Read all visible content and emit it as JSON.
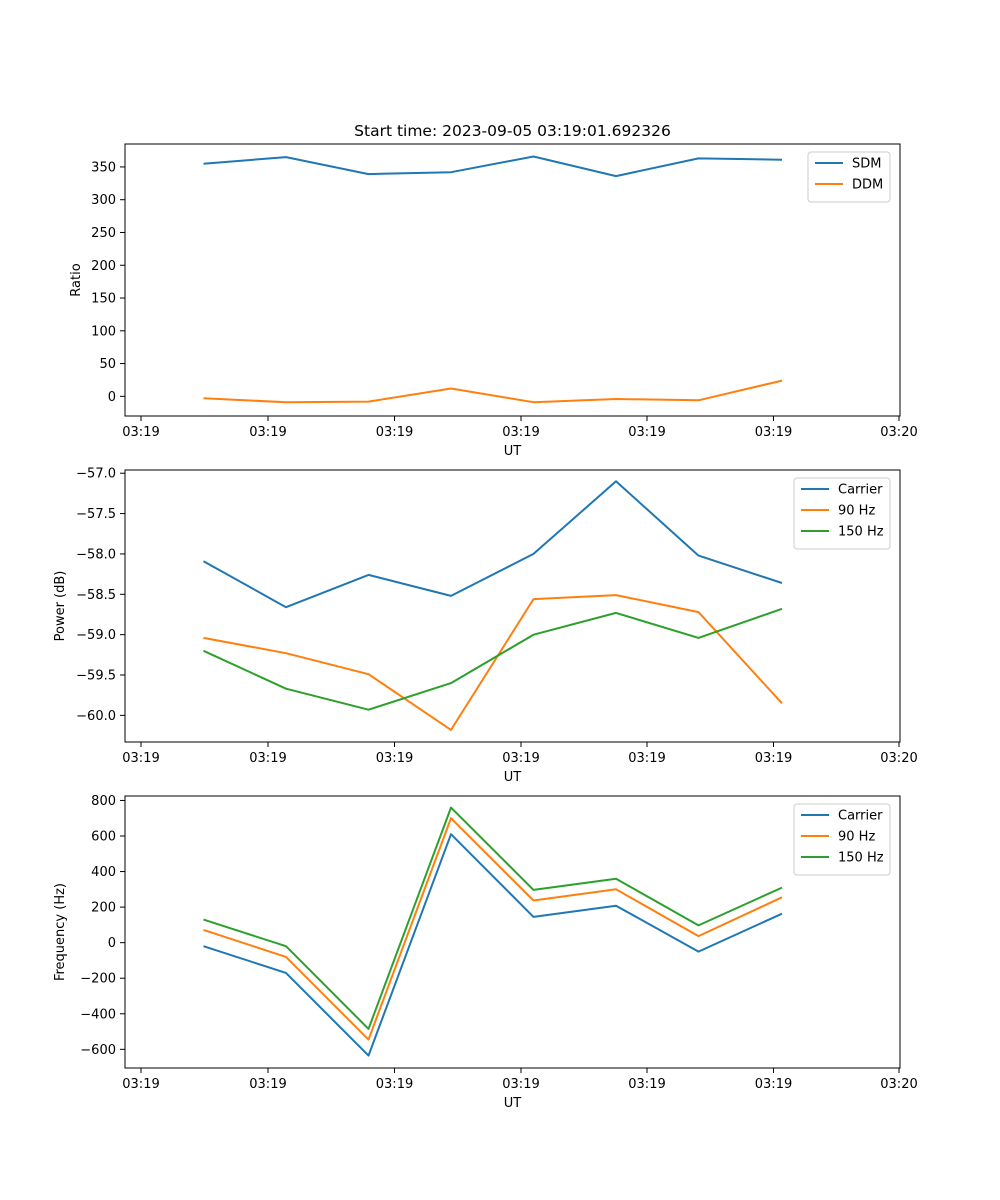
{
  "chart_data": [
    {
      "type": "line",
      "title": "Start time: 2023-09-05 03:19:01.692326",
      "xlabel": "UT",
      "ylabel": "Ratio",
      "x_tick_labels": [
        "03:19",
        "03:19",
        "03:19",
        "03:19",
        "03:19",
        "03:19",
        "03:20"
      ],
      "ylim": [
        -30,
        385
      ],
      "yticks": [
        0,
        50,
        100,
        150,
        200,
        250,
        300,
        350
      ],
      "ytick_labels": [
        "0",
        "50",
        "100",
        "150",
        "200",
        "250",
        "300",
        "350"
      ],
      "legend_position": "top-right",
      "series": [
        {
          "name": "SDM",
          "color": "#1f77b4",
          "values": [
            355,
            365,
            339,
            342,
            366,
            336,
            363,
            361
          ]
        },
        {
          "name": "DDM",
          "color": "#ff7f0e",
          "values": [
            -3,
            -9,
            -8,
            12,
            -9,
            -4,
            -6,
            24
          ]
        }
      ]
    },
    {
      "type": "line",
      "title": "",
      "xlabel": "UT",
      "ylabel": "Power (dB)",
      "x_tick_labels": [
        "03:19",
        "03:19",
        "03:19",
        "03:19",
        "03:19",
        "03:19",
        "03:20"
      ],
      "ylim": [
        -60.33,
        -56.96
      ],
      "yticks": [
        -60.0,
        -59.5,
        -59.0,
        -58.5,
        -58.0,
        -57.5,
        -57.0
      ],
      "ytick_labels": [
        "−60.0",
        "−59.5",
        "−59.0",
        "−58.5",
        "−58.0",
        "−57.5",
        "−57.0"
      ],
      "legend_position": "top-right",
      "series": [
        {
          "name": "Carrier",
          "color": "#1f77b4",
          "values": [
            -58.09,
            -58.66,
            -58.26,
            -58.52,
            -58.0,
            -57.1,
            -58.02,
            -58.36
          ]
        },
        {
          "name": "90 Hz",
          "color": "#ff7f0e",
          "values": [
            -59.04,
            -59.23,
            -59.49,
            -60.18,
            -58.56,
            -58.51,
            -58.72,
            -59.85
          ]
        },
        {
          "name": "150 Hz",
          "color": "#2ca02c",
          "values": [
            -59.2,
            -59.67,
            -59.93,
            -59.6,
            -59.0,
            -58.73,
            -59.04,
            -58.68
          ]
        }
      ]
    },
    {
      "type": "line",
      "title": "",
      "xlabel": "UT",
      "ylabel": "Frequency (Hz)",
      "x_tick_labels": [
        "03:19",
        "03:19",
        "03:19",
        "03:19",
        "03:19",
        "03:19",
        "03:20"
      ],
      "ylim": [
        -705,
        825
      ],
      "yticks": [
        -600,
        -400,
        -200,
        0,
        200,
        400,
        600,
        800
      ],
      "ytick_labels": [
        "−600",
        "−400",
        "−200",
        "0",
        "200",
        "400",
        "600",
        "800"
      ],
      "legend_position": "top-right",
      "series": [
        {
          "name": "Carrier",
          "color": "#1f77b4",
          "values": [
            -20,
            -170,
            -635,
            610,
            145,
            208,
            -50,
            163
          ]
        },
        {
          "name": "90 Hz",
          "color": "#ff7f0e",
          "values": [
            72,
            -80,
            -545,
            700,
            237,
            300,
            37,
            255
          ]
        },
        {
          "name": "150 Hz",
          "color": "#2ca02c",
          "values": [
            130,
            -20,
            -485,
            760,
            297,
            360,
            97,
            310
          ]
        }
      ]
    }
  ]
}
